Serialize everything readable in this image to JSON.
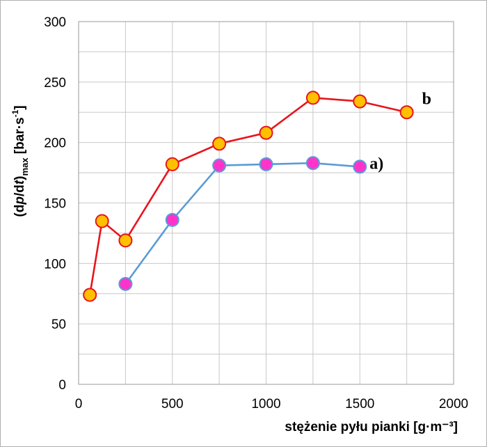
{
  "chart_data": {
    "type": "line",
    "xlabel": "stężenie pyłu pianki [g·m⁻³]",
    "ylabel": "(dp/dt)max [bar·s⁻¹]",
    "ylabel_parts": {
      "d1": "(d",
      "p": "p",
      "slash": "/d",
      "t": "t",
      "close": ")",
      "sub": "max",
      "unit": " [bar·s",
      "exp": "-1",
      "end": "]"
    },
    "xlim": [
      0,
      2000
    ],
    "ylim": [
      0,
      300
    ],
    "x_ticks": [
      "0",
      "500",
      "1000",
      "1500",
      "2000"
    ],
    "y_ticks": [
      "0",
      "50",
      "100",
      "150",
      "200",
      "250",
      "300"
    ],
    "grid": true,
    "series": [
      {
        "name": "b",
        "line_color": "#e8141c",
        "marker_fill": "#ffc000",
        "marker_edge": "#e8141c",
        "x": [
          60,
          125,
          250,
          500,
          750,
          1000,
          1250,
          1500,
          1750
        ],
        "y": [
          74,
          135,
          119,
          182,
          199,
          208,
          237,
          234,
          225
        ]
      },
      {
        "name": "a)",
        "line_color": "#5b9bd5",
        "marker_fill": "#ff33cc",
        "marker_edge": "#5b9bd5",
        "x": [
          250,
          500,
          750,
          1000,
          1250,
          1500
        ],
        "y": [
          83,
          136,
          181,
          182,
          183,
          180
        ]
      }
    ]
  }
}
